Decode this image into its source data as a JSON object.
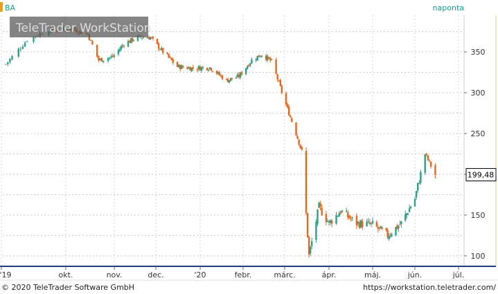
{
  "header": {
    "symbol": "BA",
    "interval": "naponta"
  },
  "watermark": "TeleTrader WorkStation",
  "footer": {
    "copyright": "© 2020 TeleTrader Software GmbH",
    "url": "https://workstation.teletrader.com/"
  },
  "last_price_label": "199,48",
  "colors": {
    "up": "#2e9e87",
    "down": "#e8661c",
    "accent_header": "#1a9c8a",
    "price_tag_bg": "#ffffff",
    "axis_line": "#1f3a8a",
    "watermark_bg": "#555555"
  },
  "chart_data": {
    "type": "candlestick",
    "x_ticks": [
      "'19",
      "okt.",
      "nov.",
      "dec.",
      "'20",
      "febr.",
      "márc.",
      "ápr.",
      "máj.",
      "jún.",
      "júl."
    ],
    "y_ticks": [
      "100",
      "150",
      "200",
      "250",
      "300",
      "350"
    ],
    "ylim": [
      88,
      395
    ],
    "grid": true,
    "approx_path": [
      {
        "date": "2019-09-03",
        "close": 335
      },
      {
        "date": "2019-09-13",
        "close": 365
      },
      {
        "date": "2019-09-23",
        "close": 377
      },
      {
        "date": "2019-10-04",
        "close": 378
      },
      {
        "date": "2019-10-15",
        "close": 372
      },
      {
        "date": "2019-10-22",
        "close": 340
      },
      {
        "date": "2019-10-31",
        "close": 344
      },
      {
        "date": "2019-11-08",
        "close": 360
      },
      {
        "date": "2019-11-18",
        "close": 368
      },
      {
        "date": "2019-11-27",
        "close": 368
      },
      {
        "date": "2019-12-05",
        "close": 352
      },
      {
        "date": "2019-12-16",
        "close": 332
      },
      {
        "date": "2019-12-27",
        "close": 330
      },
      {
        "date": "2020-01-08",
        "close": 331
      },
      {
        "date": "2020-01-20",
        "close": 315
      },
      {
        "date": "2020-01-29",
        "close": 320
      },
      {
        "date": "2020-02-07",
        "close": 340
      },
      {
        "date": "2020-02-14",
        "close": 347
      },
      {
        "date": "2020-02-21",
        "close": 338
      },
      {
        "date": "2020-03-02",
        "close": 285
      },
      {
        "date": "2020-03-09",
        "close": 250
      },
      {
        "date": "2020-03-13",
        "close": 228
      },
      {
        "date": "2020-03-18",
        "close": 100
      },
      {
        "date": "2020-03-25",
        "close": 160
      },
      {
        "date": "2020-04-01",
        "close": 140
      },
      {
        "date": "2020-04-09",
        "close": 155
      },
      {
        "date": "2020-04-20",
        "close": 140
      },
      {
        "date": "2020-05-01",
        "close": 138
      },
      {
        "date": "2020-05-12",
        "close": 125
      },
      {
        "date": "2020-05-22",
        "close": 140
      },
      {
        "date": "2020-06-01",
        "close": 170
      },
      {
        "date": "2020-06-08",
        "close": 225
      },
      {
        "date": "2020-06-15",
        "close": 199.48
      }
    ]
  }
}
